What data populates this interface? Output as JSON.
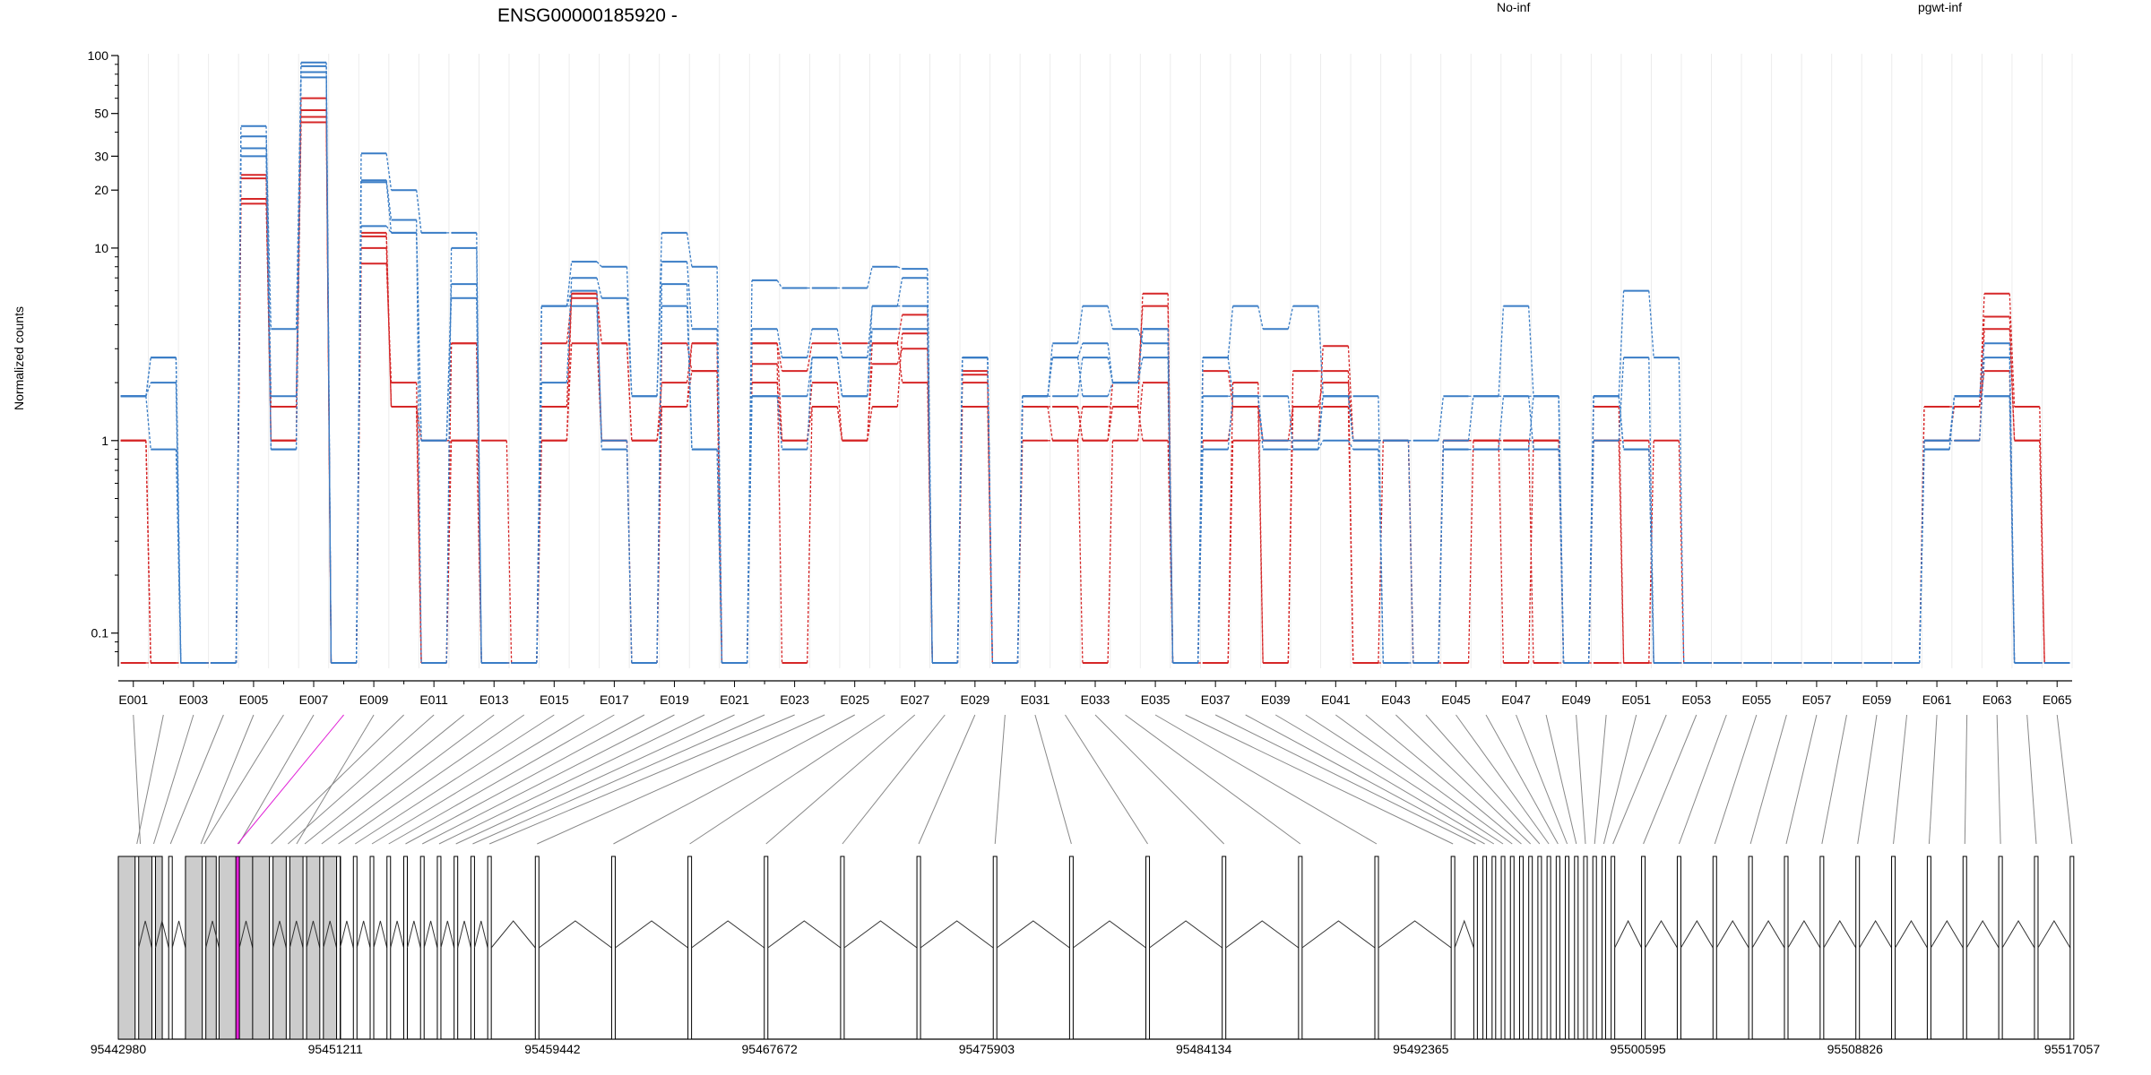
{
  "chart_data": {
    "type": "line",
    "title": "ENSG00000185920 -",
    "ylabel": "Normalized counts",
    "xlabel": "",
    "yscale": "log",
    "ylim": [
      0.07,
      100
    ],
    "yticks": [
      0.1,
      1,
      10,
      20,
      30,
      50,
      100
    ],
    "ytick_labels": [
      "0.1",
      "1",
      "10",
      "20",
      "30",
      "50",
      "100"
    ],
    "grid": "vertical lines at exon bins",
    "legend_position": "top",
    "colors": {
      "no_inf": "#d62728",
      "pgwt_inf": "#3a7dc6",
      "highlight_exon": "#e01fd6"
    },
    "legend": [
      {
        "label": "No-inf",
        "color": "#d62728"
      },
      {
        "label": "pgwt-inf",
        "color": "#3a7dc6"
      }
    ],
    "exon_ids": [
      "E001",
      "E002",
      "E003",
      "E004",
      "E005",
      "E006",
      "E007",
      "E008",
      "E009",
      "E010",
      "E011",
      "E012",
      "E013",
      "E014",
      "E015",
      "E016",
      "E017",
      "E018",
      "E019",
      "E020",
      "E021",
      "E022",
      "E023",
      "E024",
      "E025",
      "E026",
      "E027",
      "E028",
      "E029",
      "E030",
      "E031",
      "E032",
      "E033",
      "E034",
      "E035",
      "E036",
      "E037",
      "E038",
      "E039",
      "E040",
      "E041",
      "E042",
      "E043",
      "E044",
      "E045",
      "E046",
      "E047",
      "E048",
      "E049",
      "E050",
      "E051",
      "E052",
      "E053",
      "E054",
      "E055",
      "E056",
      "E057",
      "E058",
      "E059",
      "E060",
      "E061",
      "E062",
      "E063",
      "E064",
      "E065"
    ],
    "exon_tick_labels": [
      "E001",
      "E003",
      "E005",
      "E007",
      "E009",
      "E011",
      "E013",
      "E015",
      "E017",
      "E019",
      "E021",
      "E023",
      "E025",
      "E027",
      "E029",
      "E031",
      "E033",
      "E035",
      "E037",
      "E039",
      "E041",
      "E043",
      "E045",
      "E047",
      "E049",
      "E051",
      "E053",
      "E055",
      "E057",
      "E059",
      "E061",
      "E063",
      "E065"
    ],
    "series": [
      {
        "group": "No-inf",
        "values": [
          1,
          0.07,
          0.07,
          0.07,
          24,
          1,
          52,
          0.07,
          11.5,
          1.5,
          1,
          1,
          1,
          0.07,
          1.5,
          5.8,
          1,
          0.07,
          3.2,
          2.3,
          0.07,
          2.5,
          0.07,
          1.5,
          1,
          2.5,
          3,
          0.07,
          2.2,
          0.07,
          1.5,
          1,
          1.5,
          1.5,
          5.8,
          0.07,
          1,
          1.5,
          1,
          1,
          3.1,
          1,
          1,
          0.07,
          1,
          1,
          1,
          1,
          0.07,
          1.5,
          0.07,
          1,
          0.07,
          0.07,
          0.07,
          0.07,
          0.07,
          0.07,
          0.07,
          0.07,
          1.5,
          1.5,
          5.8,
          1.5,
          0.07
        ]
      },
      {
        "group": "No-inf",
        "values": [
          1,
          0.07,
          0.07,
          0.07,
          18,
          1,
          48,
          0.07,
          10,
          1.5,
          0.07,
          3.2,
          0.07,
          0.07,
          1,
          5.8,
          3.2,
          1,
          2,
          3.2,
          0.07,
          3.2,
          1,
          1.5,
          1,
          1.5,
          3.6,
          0.07,
          1.5,
          0.07,
          1.5,
          1.5,
          1,
          1.5,
          1,
          0.07,
          0.07,
          1,
          1,
          1.5,
          2,
          1,
          1,
          0.07,
          1,
          1,
          1,
          1,
          0.07,
          1,
          1,
          0.07,
          0.07,
          0.07,
          0.07,
          0.07,
          0.07,
          0.07,
          0.07,
          0.07,
          1,
          1,
          3.8,
          1,
          0.07
        ]
      },
      {
        "group": "No-inf",
        "values": [
          1,
          0.07,
          0.07,
          0.07,
          17,
          1.5,
          60,
          0.07,
          12,
          1.5,
          0.07,
          1,
          0.07,
          0.07,
          1,
          3.2,
          1,
          0.07,
          1.5,
          3.2,
          0.07,
          2,
          1,
          2,
          1,
          3.2,
          2,
          0.07,
          2,
          0.07,
          1,
          1,
          0.07,
          1,
          2,
          0.07,
          0.07,
          2,
          0.07,
          1.5,
          1.5,
          0.07,
          1,
          0.07,
          0.07,
          1,
          0.07,
          1,
          0.07,
          1,
          0.07,
          0.07,
          0.07,
          0.07,
          0.07,
          0.07,
          0.07,
          0.07,
          0.07,
          0.07,
          1,
          1.5,
          2.3,
          0.07,
          0.07
        ]
      },
      {
        "group": "No-inf",
        "values": [
          0.07,
          0.07,
          0.07,
          0.07,
          23,
          1,
          45,
          0.07,
          8.3,
          2,
          0.07,
          3.2,
          0.07,
          0.07,
          3.2,
          5.5,
          3.2,
          1,
          1.5,
          2.3,
          0.07,
          3.2,
          2.3,
          3.2,
          3.2,
          3.2,
          4.5,
          0.07,
          2.3,
          0.07,
          1.5,
          1.5,
          1,
          2,
          5,
          0.07,
          2.3,
          1.5,
          0.07,
          2.3,
          2.3,
          0.07,
          0.07,
          0.07,
          1,
          1,
          1,
          0.07,
          0.07,
          0.07,
          0.07,
          0.07,
          0.07,
          0.07,
          0.07,
          0.07,
          0.07,
          0.07,
          0.07,
          0.07,
          1.5,
          1.5,
          4.4,
          1,
          0.07
        ]
      },
      {
        "group": "pgwt-inf",
        "values": [
          1.7,
          2.7,
          0.07,
          0.07,
          43,
          1.7,
          92,
          0.07,
          31,
          20,
          12,
          12,
          0.07,
          0.07,
          5,
          8.5,
          8,
          1.7,
          12,
          8,
          0.07,
          6.8,
          6.2,
          6.2,
          6.2,
          8,
          7.8,
          0.07,
          2.7,
          0.07,
          1.7,
          3.2,
          5,
          3.8,
          3.2,
          0.07,
          2.7,
          5,
          3.8,
          5,
          1.7,
          1,
          1,
          1,
          1.7,
          1.7,
          5,
          1.7,
          0.07,
          1.7,
          6,
          2.7,
          0.07,
          0.07,
          0.07,
          0.07,
          0.07,
          0.07,
          0.07,
          0.07,
          1,
          1.7,
          3.2,
          0.07,
          0.07
        ]
      },
      {
        "group": "pgwt-inf",
        "values": [
          1.7,
          2,
          0.07,
          0.07,
          38,
          3.8,
          88,
          0.07,
          22.5,
          14,
          0.07,
          10,
          0.07,
          0.07,
          2,
          7,
          5.5,
          1.7,
          8.5,
          3.8,
          0.07,
          3.8,
          2.7,
          3.8,
          2.7,
          5,
          7,
          0.07,
          2.7,
          0.07,
          1.7,
          2.7,
          3.2,
          2,
          3.8,
          0.07,
          1.7,
          1.7,
          1,
          1,
          1.7,
          1,
          1,
          0.07,
          1,
          1.7,
          1.7,
          1.7,
          0.07,
          1,
          2.7,
          0.07,
          0.07,
          0.07,
          0.07,
          0.07,
          0.07,
          0.07,
          0.07,
          0.07,
          1,
          1,
          2.7,
          0.07,
          0.07
        ]
      },
      {
        "group": "pgwt-inf",
        "values": [
          1.7,
          0.9,
          0.07,
          0.07,
          33,
          0.9,
          77,
          0.07,
          22,
          12,
          1,
          6.5,
          0.07,
          0.07,
          5,
          6,
          1,
          0.07,
          5,
          0.9,
          0.07,
          1.7,
          0.9,
          2.7,
          1.7,
          5,
          5,
          0.07,
          2.7,
          0.07,
          1.7,
          1.7,
          2.7,
          2,
          3.8,
          0.07,
          0.9,
          1.7,
          1.7,
          0.9,
          1.7,
          1.7,
          0.07,
          0.07,
          0.9,
          0.9,
          1.7,
          0.9,
          0.07,
          1.7,
          0.9,
          0.07,
          0.07,
          0.07,
          0.07,
          0.07,
          0.07,
          0.07,
          0.07,
          0.07,
          0.9,
          1.7,
          1.7,
          0.07,
          0.07
        ]
      },
      {
        "group": "pgwt-inf",
        "values": [
          1.7,
          2.7,
          0.07,
          0.07,
          30,
          0.9,
          82,
          0.07,
          13,
          12,
          1,
          5.5,
          0.07,
          0.07,
          5,
          5,
          0.9,
          0.07,
          6.5,
          0.9,
          0.07,
          1.7,
          1.7,
          2.7,
          1.7,
          3.8,
          3.8,
          0.07,
          2.7,
          0.07,
          1.7,
          2.7,
          1.7,
          2,
          2.7,
          0.07,
          2.7,
          1.7,
          0.9,
          0.9,
          1,
          0.9,
          0.07,
          0.07,
          0.9,
          0.9,
          0.9,
          1.7,
          0.07,
          1.7,
          0.9,
          0.07,
          0.07,
          0.07,
          0.07,
          0.07,
          0.07,
          0.07,
          0.07,
          0.07,
          0.9,
          1.7,
          1.7,
          0.07,
          0.07
        ]
      }
    ],
    "gene_model": {
      "position_labels": [
        "95442980",
        "95451211",
        "95459442",
        "95467672",
        "95475903",
        "95484134",
        "95492365",
        "95500595",
        "95508826",
        "95517057"
      ]
    }
  }
}
